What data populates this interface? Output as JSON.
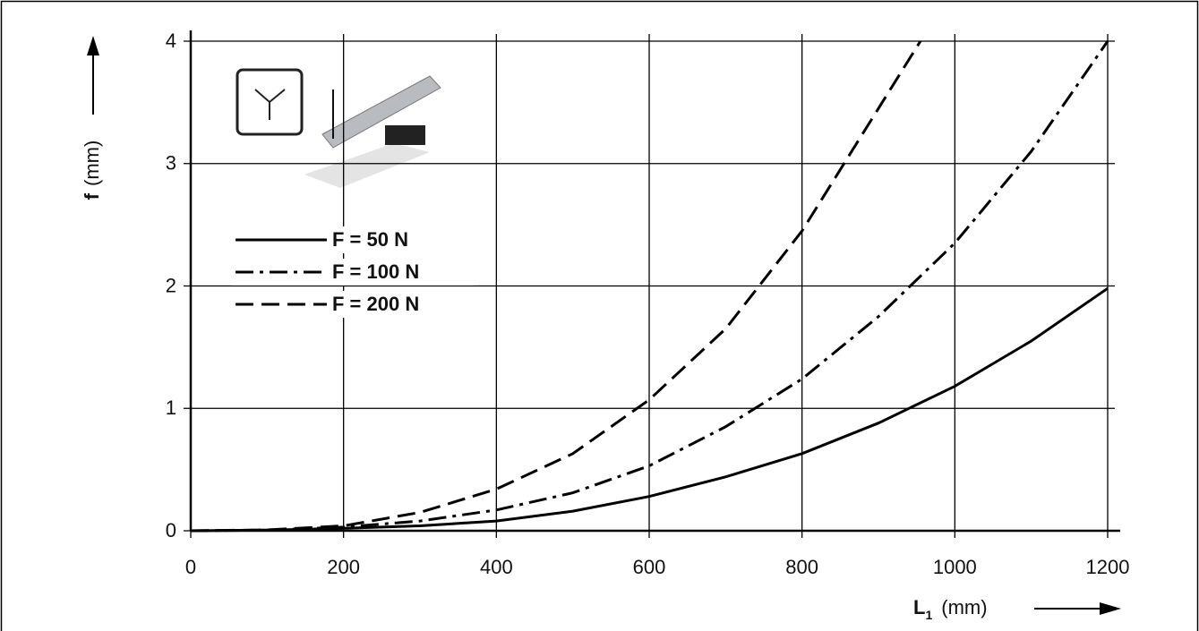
{
  "chart_data": {
    "type": "line",
    "x_label": "L",
    "x_label_sub": "1",
    "x_label_unit": "(mm)",
    "y_label": "f",
    "y_label_unit": "(mm)",
    "xlim": [
      0,
      1200
    ],
    "xticks": [
      0,
      200,
      400,
      600,
      800,
      1000,
      1200
    ],
    "ylim": [
      0,
      4
    ],
    "yticks": [
      0,
      1,
      2,
      3,
      4
    ],
    "grid": true,
    "legend": "upper-left",
    "series": [
      {
        "name": "F = 50 N",
        "color": "#000000",
        "dash": "solid",
        "x": [
          0,
          100,
          200,
          300,
          400,
          500,
          600,
          700,
          800,
          900,
          1000,
          1100,
          1200
        ],
        "values": [
          0,
          0.005,
          0.02,
          0.04,
          0.08,
          0.16,
          0.28,
          0.44,
          0.63,
          0.88,
          1.18,
          1.55,
          1.98
        ]
      },
      {
        "name": "F = 100 N",
        "color": "#000000",
        "dash": "dashdot",
        "x": [
          0,
          100,
          200,
          300,
          400,
          500,
          600,
          700,
          800,
          900,
          1000,
          1100,
          1200
        ],
        "values": [
          0,
          0.005,
          0.03,
          0.08,
          0.17,
          0.31,
          0.53,
          0.85,
          1.24,
          1.75,
          2.35,
          3.1,
          4.0
        ]
      },
      {
        "name": "F = 200 N",
        "color": "#000000",
        "dash": "dashed",
        "x": [
          0,
          100,
          200,
          300,
          400,
          500,
          600,
          700,
          800,
          900,
          955
        ],
        "values": [
          0,
          0.007,
          0.04,
          0.15,
          0.34,
          0.63,
          1.07,
          1.65,
          2.45,
          3.45,
          4.0
        ]
      }
    ]
  }
}
